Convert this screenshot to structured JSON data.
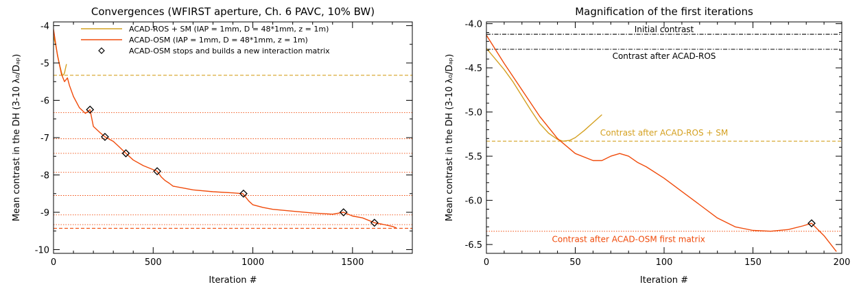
{
  "chart_data": [
    {
      "type": "line",
      "title": "Convergences (WFIRST aperture, Ch. 6 PAVC, 10% BW)",
      "xlabel": "Iteration #",
      "ylabel": "Mean contrast in the DH (3-10 λ₀/Dₐₚ)",
      "xlim": [
        0,
        1800
      ],
      "ylim": [
        -10.1,
        -3.9
      ],
      "xticks": [
        0,
        500,
        1000,
        1500
      ],
      "yticks": [
        -10,
        -9,
        -8,
        -7,
        -6,
        -5,
        -4
      ],
      "colors": {
        "ros": "#d4a020",
        "osm": "#f04a0a"
      },
      "legend": {
        "ros": "ACAD-ROS + SM (IAP = 1mm, D = 48*1mm, z = 1m)",
        "osm": "ACAD-OSM (IAP = 1mm, D = 48*1mm, z = 1m)",
        "marker": "ACAD-OSM stops and builds a new interaction matrix"
      },
      "series": [
        {
          "key": "ros",
          "x": [
            0,
            10,
            20,
            30,
            40,
            45,
            50,
            55,
            60,
            65
          ],
          "y": [
            -4.28,
            -4.5,
            -4.78,
            -5.04,
            -5.25,
            -5.33,
            -5.32,
            -5.27,
            -5.15,
            -5.03
          ]
        },
        {
          "key": "osm",
          "x": [
            0,
            20,
            40,
            55,
            70,
            80,
            100,
            130,
            160,
            183,
            200,
            230,
            258,
            300,
            330,
            363,
            400,
            450,
            520,
            540,
            560,
            580,
            600,
            650,
            700,
            800,
            900,
            950,
            980,
            1000,
            1050,
            1100,
            1200,
            1300,
            1400,
            1455,
            1500,
            1550,
            1610,
            1650,
            1700,
            1720
          ],
          "y": [
            -4.1,
            -4.8,
            -5.3,
            -5.5,
            -5.4,
            -5.6,
            -5.9,
            -6.2,
            -6.35,
            -6.25,
            -6.7,
            -6.85,
            -6.98,
            -7.1,
            -7.25,
            -7.42,
            -7.6,
            -7.75,
            -7.9,
            -8.05,
            -8.15,
            -8.22,
            -8.3,
            -8.35,
            -8.4,
            -8.45,
            -8.48,
            -8.5,
            -8.7,
            -8.8,
            -8.87,
            -8.92,
            -8.97,
            -9.02,
            -9.05,
            -9.0,
            -9.1,
            -9.15,
            -9.28,
            -9.32,
            -9.38,
            -9.42
          ]
        }
      ],
      "markers": {
        "x": [
          183,
          258,
          363,
          520,
          953,
          1455,
          1610
        ],
        "y": [
          -6.25,
          -6.98,
          -7.42,
          -7.9,
          -8.5,
          -9.0,
          -9.28
        ]
      },
      "hlines": [
        {
          "y": -5.33,
          "color": "ros",
          "style": "dashed"
        },
        {
          "y": -6.33,
          "color": "osm",
          "style": "dotted"
        },
        {
          "y": -7.03,
          "color": "osm",
          "style": "dotted"
        },
        {
          "y": -7.42,
          "color": "osm",
          "style": "dotted"
        },
        {
          "y": -7.93,
          "color": "osm",
          "style": "dotted"
        },
        {
          "y": -8.55,
          "color": "osm",
          "style": "dotted"
        },
        {
          "y": -9.07,
          "color": "osm",
          "style": "dotted"
        },
        {
          "y": -9.33,
          "color": "osm",
          "style": "dotted"
        },
        {
          "y": -9.43,
          "color": "osm",
          "style": "dashed"
        }
      ],
      "legend_position": "top-right",
      "grid": false
    },
    {
      "type": "line",
      "title": "Magnification of the first iterations",
      "xlabel": "Iteration #",
      "ylabel": "Mean contrast in the DH (3-10 λ₀/Dₐₚ)",
      "xlim": [
        0,
        200
      ],
      "ylim": [
        -6.6,
        -3.98
      ],
      "xticks": [
        0,
        50,
        100,
        150,
        200
      ],
      "yticks": [
        -6.5,
        -6.0,
        -5.5,
        -5.0,
        -4.5,
        -4.0
      ],
      "ytick_labels": [
        "-6.5",
        "-6.0",
        "-5.5",
        "-5.0",
        "-4.5",
        "-4.0"
      ],
      "colors": {
        "ros": "#d4a020",
        "osm": "#f04a0a",
        "ref": "#000000"
      },
      "series": [
        {
          "key": "ros",
          "x": [
            0,
            5,
            10,
            15,
            20,
            25,
            30,
            35,
            40,
            43,
            47,
            50,
            55,
            60,
            65
          ],
          "y": [
            -4.28,
            -4.4,
            -4.52,
            -4.66,
            -4.82,
            -4.98,
            -5.13,
            -5.24,
            -5.31,
            -5.33,
            -5.32,
            -5.29,
            -5.21,
            -5.12,
            -5.03
          ]
        },
        {
          "key": "osm",
          "x": [
            0,
            10,
            20,
            30,
            40,
            50,
            60,
            65,
            70,
            75,
            80,
            85,
            90,
            100,
            110,
            120,
            130,
            140,
            150,
            160,
            170,
            178,
            183,
            190,
            197
          ],
          "y": [
            -4.13,
            -4.45,
            -4.75,
            -5.05,
            -5.3,
            -5.47,
            -5.55,
            -5.55,
            -5.5,
            -5.47,
            -5.5,
            -5.57,
            -5.62,
            -5.75,
            -5.9,
            -6.05,
            -6.2,
            -6.3,
            -6.34,
            -6.35,
            -6.33,
            -6.29,
            -6.26,
            -6.4,
            -6.58
          ]
        }
      ],
      "markers": {
        "x": [
          183
        ],
        "y": [
          -6.26
        ]
      },
      "hlines": [
        {
          "y": -4.12,
          "color": "ref",
          "style": "dashdot",
          "label": "Initial contrast"
        },
        {
          "y": -4.29,
          "color": "ref",
          "style": "dashdot",
          "label": "Contrast after ACAD-ROS"
        },
        {
          "y": -5.33,
          "color": "ros",
          "style": "dashed",
          "label": "Contrast after ACAD-ROS + SM"
        },
        {
          "y": -6.35,
          "color": "osm",
          "style": "dotted",
          "label": "Contrast after ACAD-OSM first matrix"
        }
      ],
      "grid": false
    }
  ]
}
